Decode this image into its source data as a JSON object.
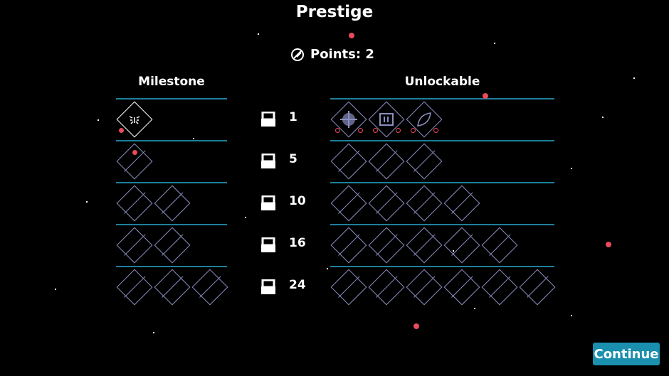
{
  "title": "Prestige",
  "points": {
    "label": "Points: 2",
    "icon": "feather-icon"
  },
  "headers": {
    "milestone": "Milestone",
    "unlockable": "Unlockable"
  },
  "rows": [
    {
      "threshold": "1",
      "milestones": 1,
      "unlockables": 3,
      "unlocked_icons": [
        "crosshair-icon",
        "pause-box-icon",
        "leaf-icon"
      ],
      "milestone_icon": "burst-icon"
    },
    {
      "threshold": "5",
      "milestones": 1,
      "unlockables": 3
    },
    {
      "threshold": "10",
      "milestones": 2,
      "unlockables": 4
    },
    {
      "threshold": "16",
      "milestones": 2,
      "unlockables": 5
    },
    {
      "threshold": "24",
      "milestones": 3,
      "unlockables": 6
    }
  ],
  "continue_label": "Continue",
  "colors": {
    "accent": "#1b8fae",
    "divider": "#1d7f9a",
    "locked": "#8a8fc0",
    "dot": "#e94a5c"
  }
}
